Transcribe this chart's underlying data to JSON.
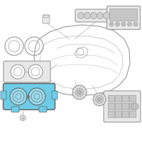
{
  "bg_color": "#ffffff",
  "highlight_color": "#6dcde8",
  "outline_color": "#999999",
  "dark_outline": "#666666",
  "light_fill": "#e8e8e8",
  "figsize": [
    2.0,
    2.0
  ],
  "dpi": 100
}
